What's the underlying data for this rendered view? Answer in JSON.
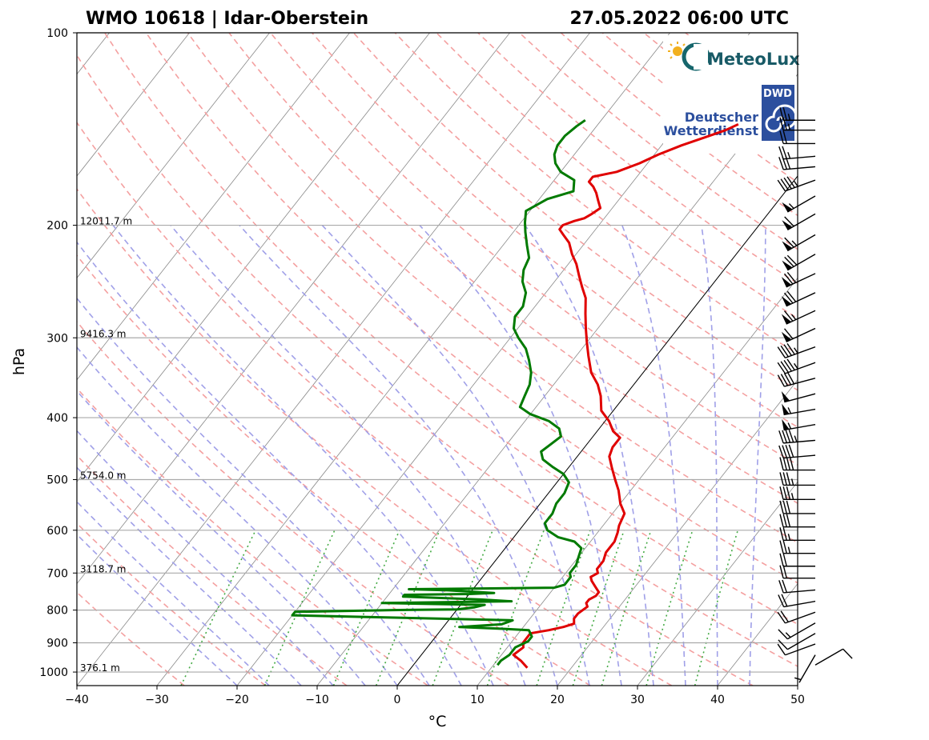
{
  "header": {
    "station": "WMO 10618 | Idar-Oberstein",
    "datetime": "27.05.2022 06:00 UTC"
  },
  "logos": {
    "meteolux": "MeteoLux",
    "dwd_badge": "DWD",
    "dwd_line1": "Deutscher",
    "dwd_line2": "Wetterdienst"
  },
  "colors": {
    "temperature": "#e00000",
    "dewpoint": "#007a00",
    "dry_adiabat": "#f4a0a0",
    "moist_adiabat": "#a0a0e8",
    "mixing_ratio": "#44aa44",
    "isotherm": "#888888",
    "grid": "#aaaaaa"
  },
  "chart_data": {
    "type": "skew-t",
    "xlabel": "°C",
    "ylabel": "hPa",
    "xlim": [
      -40,
      50
    ],
    "ylim": [
      1050,
      100
    ],
    "log_y": true,
    "grid": true,
    "x_ticks": [
      "−40",
      "−30",
      "−20",
      "−10",
      "0",
      "10",
      "20",
      "30",
      "40",
      "50"
    ],
    "x_tick_values": [
      -40,
      -30,
      -20,
      -10,
      0,
      10,
      20,
      30,
      40,
      50
    ],
    "y_ticks": [
      "100",
      "200",
      "300",
      "400",
      "500",
      "600",
      "700",
      "800",
      "900",
      "1000"
    ],
    "y_tick_values": [
      100,
      200,
      300,
      400,
      500,
      600,
      700,
      800,
      900,
      1000
    ],
    "height_labels": [
      {
        "p": 200,
        "text": "12011.7 m"
      },
      {
        "p": 300,
        "text": "9416.3 m"
      },
      {
        "p": 500,
        "text": "5754.0 m"
      },
      {
        "p": 700,
        "text": "3118.7 m"
      },
      {
        "p": 1000,
        "text": "376.1 m"
      }
    ],
    "series": [
      {
        "key": "temperature",
        "points": [
          [
            14.5,
            985
          ],
          [
            13,
            960
          ],
          [
            11.5,
            940
          ],
          [
            12,
            915
          ],
          [
            11.5,
            900
          ],
          [
            11.5,
            870
          ],
          [
            13.5,
            860
          ],
          [
            15,
            850
          ],
          [
            16,
            840
          ],
          [
            15.5,
            825
          ],
          [
            15.5,
            810
          ],
          [
            16,
            790
          ],
          [
            15.5,
            780
          ],
          [
            15.5,
            770
          ],
          [
            16,
            760
          ],
          [
            16,
            750
          ],
          [
            15,
            735
          ],
          [
            14,
            720
          ],
          [
            13.5,
            710
          ],
          [
            14,
            700
          ],
          [
            13.5,
            690
          ],
          [
            13.5,
            670
          ],
          [
            13,
            650
          ],
          [
            13,
            625
          ],
          [
            12.5,
            605
          ],
          [
            12,
            590
          ],
          [
            11.5,
            565
          ],
          [
            10,
            545
          ],
          [
            8.5,
            520
          ],
          [
            7,
            500
          ],
          [
            5.5,
            480
          ],
          [
            4,
            460
          ],
          [
            3.5,
            445
          ],
          [
            3.5,
            430
          ],
          [
            2,
            420
          ],
          [
            0.5,
            405
          ],
          [
            -1.5,
            390
          ],
          [
            -3,
            370
          ],
          [
            -4.5,
            355
          ],
          [
            -6.5,
            340
          ],
          [
            -8.5,
            320
          ],
          [
            -10,
            305
          ],
          [
            -11.5,
            290
          ],
          [
            -13,
            275
          ],
          [
            -14.5,
            260
          ],
          [
            -16,
            250
          ],
          [
            -17.5,
            240
          ],
          [
            -19,
            230
          ],
          [
            -20.5,
            222
          ],
          [
            -22,
            213
          ],
          [
            -23.5,
            207
          ],
          [
            -24.5,
            203
          ],
          [
            -24.5,
            200
          ],
          [
            -23.5,
            197
          ],
          [
            -22.5,
            195
          ],
          [
            -22,
            192
          ],
          [
            -21.5,
            188
          ],
          [
            -22.5,
            183
          ],
          [
            -23.5,
            178
          ],
          [
            -24.5,
            174
          ],
          [
            -25.5,
            171
          ],
          [
            -25.5,
            168
          ],
          [
            -23,
            165
          ],
          [
            -21,
            160
          ],
          [
            -19.5,
            155
          ],
          [
            -17.5,
            150
          ],
          [
            -15,
            145
          ],
          [
            -13.5,
            142
          ],
          [
            -12.5,
            139
          ]
        ]
      },
      {
        "key": "dewpoint",
        "points": [
          [
            10.5,
            975
          ],
          [
            10.5,
            960
          ],
          [
            11,
            940
          ],
          [
            11,
            915
          ],
          [
            12,
            895
          ],
          [
            12,
            880
          ],
          [
            11,
            860
          ],
          [
            7,
            855
          ],
          [
            2,
            850
          ],
          [
            7,
            842
          ],
          [
            8,
            830
          ],
          [
            -20,
            815
          ],
          [
            -20,
            805
          ],
          [
            -8,
            800
          ],
          [
            0,
            798
          ],
          [
            2,
            792
          ],
          [
            3,
            785
          ],
          [
            -10,
            780
          ],
          [
            6,
            775
          ],
          [
            2,
            770
          ],
          [
            -8,
            762
          ],
          [
            -8,
            757
          ],
          [
            0,
            755
          ],
          [
            3,
            752
          ],
          [
            -3,
            745
          ],
          [
            -8,
            742
          ],
          [
            1,
            740
          ],
          [
            10,
            738
          ],
          [
            11,
            730
          ],
          [
            11,
            720
          ],
          [
            11,
            710
          ],
          [
            10.5,
            700
          ],
          [
            10.5,
            680
          ],
          [
            10,
            660
          ],
          [
            9.5,
            640
          ],
          [
            8,
            625
          ],
          [
            5.5,
            615
          ],
          [
            3.5,
            600
          ],
          [
            2.5,
            585
          ],
          [
            2.5,
            565
          ],
          [
            2,
            545
          ],
          [
            2,
            525
          ],
          [
            1.5,
            505
          ],
          [
            0,
            490
          ],
          [
            -2,
            478
          ],
          [
            -4,
            465
          ],
          [
            -5,
            452
          ],
          [
            -4.5,
            440
          ],
          [
            -4,
            428
          ],
          [
            -5,
            416
          ],
          [
            -7,
            405
          ],
          [
            -10,
            395
          ],
          [
            -12,
            385
          ],
          [
            -12.5,
            370
          ],
          [
            -13,
            355
          ],
          [
            -14,
            340
          ],
          [
            -15.5,
            325
          ],
          [
            -17,
            312
          ],
          [
            -19,
            300
          ],
          [
            -20.5,
            290
          ],
          [
            -21.5,
            278
          ],
          [
            -21.5,
            268
          ],
          [
            -22.5,
            255
          ],
          [
            -24,
            245
          ],
          [
            -25,
            235
          ],
          [
            -25.5,
            225
          ],
          [
            -27,
            215
          ],
          [
            -28.5,
            205
          ],
          [
            -29.5,
            198
          ],
          [
            -30.5,
            190
          ],
          [
            -29,
            182
          ],
          [
            -26.5,
            177
          ],
          [
            -27.5,
            170
          ],
          [
            -30,
            165
          ],
          [
            -31.5,
            160
          ],
          [
            -32.5,
            155
          ],
          [
            -33,
            150
          ],
          [
            -33,
            145
          ],
          [
            -32.5,
            140
          ],
          [
            -32,
            137
          ]
        ]
      }
    ],
    "wind_barbs": [
      {
        "p": 137,
        "speed": 25,
        "dir": 270
      },
      {
        "p": 142,
        "speed": 25,
        "dir": 270
      },
      {
        "p": 149,
        "speed": 20,
        "dir": 270
      },
      {
        "p": 156,
        "speed": 25,
        "dir": 265
      },
      {
        "p": 162,
        "speed": 30,
        "dir": 265
      },
      {
        "p": 170,
        "speed": 45,
        "dir": 250
      },
      {
        "p": 180,
        "speed": 55,
        "dir": 240
      },
      {
        "p": 192,
        "speed": 60,
        "dir": 240
      },
      {
        "p": 207,
        "speed": 65,
        "dir": 240
      },
      {
        "p": 222,
        "speed": 70,
        "dir": 240
      },
      {
        "p": 238,
        "speed": 70,
        "dir": 245
      },
      {
        "p": 255,
        "speed": 70,
        "dir": 245
      },
      {
        "p": 272,
        "speed": 65,
        "dir": 245
      },
      {
        "p": 290,
        "speed": 60,
        "dir": 245
      },
      {
        "p": 310,
        "speed": 45,
        "dir": 250
      },
      {
        "p": 328,
        "speed": 45,
        "dir": 250
      },
      {
        "p": 347,
        "speed": 40,
        "dir": 255
      },
      {
        "p": 367,
        "speed": 50,
        "dir": 255
      },
      {
        "p": 388,
        "speed": 55,
        "dir": 260
      },
      {
        "p": 410,
        "speed": 55,
        "dir": 260
      },
      {
        "p": 434,
        "speed": 45,
        "dir": 265
      },
      {
        "p": 458,
        "speed": 40,
        "dir": 265
      },
      {
        "p": 483,
        "speed": 40,
        "dir": 270
      },
      {
        "p": 510,
        "speed": 35,
        "dir": 270
      },
      {
        "p": 537,
        "speed": 35,
        "dir": 270
      },
      {
        "p": 565,
        "speed": 30,
        "dir": 270
      },
      {
        "p": 593,
        "speed": 30,
        "dir": 270
      },
      {
        "p": 622,
        "speed": 25,
        "dir": 270
      },
      {
        "p": 652,
        "speed": 25,
        "dir": 270
      },
      {
        "p": 683,
        "speed": 20,
        "dir": 270
      },
      {
        "p": 713,
        "speed": 20,
        "dir": 270
      },
      {
        "p": 744,
        "speed": 20,
        "dir": 265
      },
      {
        "p": 775,
        "speed": 20,
        "dir": 260
      },
      {
        "p": 806,
        "speed": 20,
        "dir": 250
      },
      {
        "p": 838,
        "speed": 15,
        "dir": 240
      },
      {
        "p": 870,
        "speed": 10,
        "dir": 240
      },
      {
        "p": 904,
        "speed": 10,
        "dir": 250
      },
      {
        "p": 940,
        "speed": 5,
        "dir": 210
      },
      {
        "p": 975,
        "speed": 10,
        "dir": 60
      }
    ]
  }
}
